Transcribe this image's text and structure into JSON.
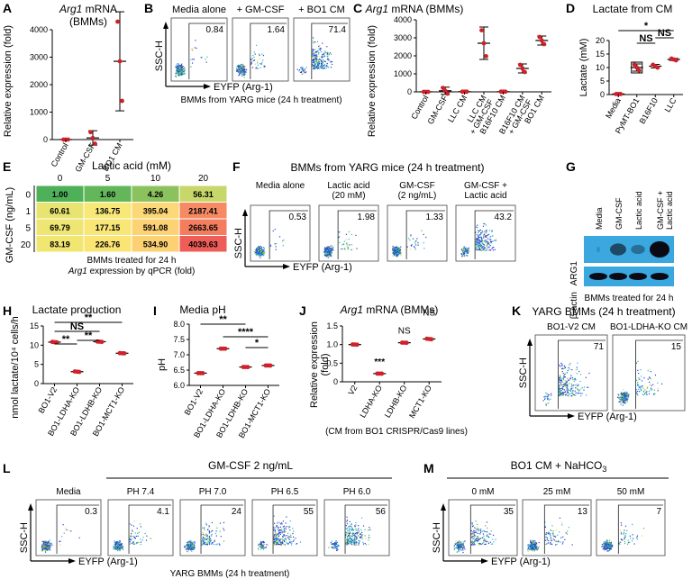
{
  "panels": {
    "A": {
      "label": "A",
      "title_gene": "Arg1",
      "title_rest": " mRNA",
      "subtitle": "(BMMs)",
      "ylabel": "Relative expression (fold)"
    },
    "B": {
      "label": "B",
      "caption": "BMMs from YARG mice (24 h treatment)",
      "xlabel": "EYFP (Arg-1)",
      "ylabel": "SSC-H",
      "plots": [
        {
          "title": "Media alone",
          "value": "0.84",
          "level": 0.06
        },
        {
          "title": "+ GM-CSF",
          "value": "1.64",
          "level": 0.12
        },
        {
          "title": "+ BO1 CM",
          "value": "71.4",
          "level": 0.9
        }
      ]
    },
    "C": {
      "label": "C",
      "title_gene": "Arg1",
      "title_rest": " mRNA (BMMs)",
      "ylabel": "Relative expression (fold)"
    },
    "D": {
      "label": "D",
      "title": "Lactate from CM",
      "ylabel": "Lactate (mM)",
      "annotations": [
        {
          "text": "*",
          "from": 0,
          "to": 3
        },
        {
          "text": "NS",
          "from": 1,
          "to": 2
        },
        {
          "text": "NS",
          "from": 2,
          "to": 3
        }
      ]
    },
    "E": {
      "label": "E",
      "title": "Lactic acid (mM)",
      "ylabel": "GM-CSF (ng/mL)",
      "caption1": "BMMs treated for 24 h",
      "caption_gene": "Arg1",
      "caption2_rest": " expression by qPCR (fold)",
      "cols": [
        "0",
        "5",
        "10",
        "20"
      ],
      "rows": [
        "0",
        "1",
        "5",
        "20"
      ],
      "values": [
        [
          "1.00",
          "1.60",
          "4.26",
          "56.31"
        ],
        [
          "60.61",
          "136.75",
          "395.04",
          "2187.41"
        ],
        [
          "69.79",
          "177.15",
          "591.08",
          "2663.65"
        ],
        [
          "83.19",
          "226.76",
          "534.90",
          "4039.63"
        ]
      ],
      "colors": [
        [
          "#4fb05a",
          "#63b75a",
          "#8cc25e",
          "#c8d769"
        ],
        [
          "#e7e471",
          "#f7e877",
          "#fcd876",
          "#f58a63"
        ],
        [
          "#eee572",
          "#f8e676",
          "#fdd275",
          "#f47d60"
        ],
        [
          "#f2e673",
          "#fae474",
          "#fcd174",
          "#ef5d59"
        ]
      ]
    },
    "F": {
      "label": "F",
      "title": "BMMs from YARG mice (24 h treatment)",
      "xlabel": "EYFP (Arg-1)",
      "ylabel": "SSC-H",
      "plots": [
        {
          "title": "Media alone",
          "value": "0.53",
          "level": 0.05
        },
        {
          "title": "Lactic acid\n(20 mM)",
          "value": "1.98",
          "level": 0.12
        },
        {
          "title": "GM-CSF\n(2 ng/mL)",
          "value": "1.33",
          "level": 0.1
        },
        {
          "title": "GM-CSF +\nLactic acid",
          "value": "43.2",
          "level": 0.75
        }
      ]
    },
    "G": {
      "label": "G",
      "lanes": [
        "Media",
        "GM-CSF",
        "Lactic acid",
        "GM-CSF +\nLactic acid"
      ],
      "bands": [
        {
          "name": "ARG1"
        },
        {
          "name": "β-actin"
        }
      ],
      "arg1_intensity": [
        0.05,
        0.6,
        0.35,
        1.0
      ],
      "caption": "BMMs treated for 24 h"
    },
    "H": {
      "label": "H",
      "title": "Lactate production",
      "ylabel": "nmol lactate/10⁴ cells/h",
      "annotations": [
        {
          "text": "**",
          "from": 0,
          "to": 3
        },
        {
          "text": "NS",
          "from": 0,
          "to": 2
        },
        {
          "text": "**",
          "from": 0,
          "to": 1
        },
        {
          "text": "**",
          "from": 1,
          "to": 2
        }
      ]
    },
    "I": {
      "label": "I",
      "title": "Media pH",
      "ylabel": "pH",
      "annotations": [
        {
          "text": "**",
          "from": 0,
          "to": 2
        },
        {
          "text": "****",
          "from": 1,
          "to": 3
        },
        {
          "text": "*",
          "from": 2,
          "to": 3
        }
      ]
    },
    "J": {
      "label": "J",
      "title_gene": "Arg1",
      "title_rest": " mRNA (BMMs)",
      "ylabel": "Relative expression\n(fold)",
      "caption": "(CM from BO1 CRISPR/Cas9 lines)",
      "marks": [
        "",
        "***",
        "NS",
        "NS"
      ]
    },
    "K": {
      "label": "K",
      "title": "YARG BMMs (24 h treatment)",
      "xlabel": "EYFP (Arg-1)",
      "ylabel": "SSC-H",
      "plots": [
        {
          "title": "BO1-V2 CM",
          "value": "71",
          "level": 0.9
        },
        {
          "title": "BO1-LDHA-KO CM",
          "value": "15",
          "level": 0.3
        }
      ]
    },
    "L": {
      "label": "L",
      "title": "GM-CSF 2 ng/mL",
      "xlabel": "EYFP (Arg-1)",
      "ylabel": "SSC-H",
      "caption": "YARG BMMs (24 h treatment)",
      "plots": [
        {
          "title": "Media",
          "value": "0.3",
          "level": 0.04
        },
        {
          "title": "PH 7.4",
          "value": "4.1",
          "level": 0.2
        },
        {
          "title": "PH 7.0",
          "value": "24",
          "level": 0.45
        },
        {
          "title": "PH 6.5",
          "value": "55",
          "level": 0.75
        },
        {
          "title": "PH 6.0",
          "value": "56",
          "level": 0.78
        }
      ]
    },
    "M": {
      "label": "M",
      "title": "BO1 CM + NaHCO",
      "title_sub": "3",
      "xlabel": "EYFP (Arg-1)",
      "ylabel": "SSC-H",
      "plots": [
        {
          "title": "0 mM",
          "value": "35",
          "level": 0.55
        },
        {
          "title": "25 mM",
          "value": "13",
          "level": 0.25
        },
        {
          "title": "50 mM",
          "value": "7",
          "level": 0.15
        }
      ]
    }
  },
  "colors": {
    "point": "#d0202a",
    "accent": "#d0202a",
    "boxfill": "#ffffff"
  },
  "chart_data": [
    {
      "panel": "A",
      "type": "scatter",
      "categories": [
        "Control",
        "GM-CSF",
        "BO1 CM"
      ],
      "values": [
        1,
        60,
        2850
      ],
      "ylim": [
        0,
        4000
      ],
      "yticks": [
        0,
        1000,
        2000,
        3000,
        4000
      ]
    },
    {
      "panel": "C",
      "type": "scatter",
      "categories": [
        "Control",
        "GM-CSF",
        "LLC CM",
        "LLC CM\n+ GM-CSF",
        "B16F10 CM",
        "B16F10 CM\n+ GM-CSF",
        "BO1 CM"
      ],
      "values": [
        1,
        60,
        10,
        2700,
        10,
        1300,
        2850
      ],
      "ylim": [
        0,
        4000
      ],
      "yticks": [
        0,
        1000,
        2000,
        3000,
        4000
      ]
    },
    {
      "panel": "D",
      "type": "box",
      "categories": [
        "Media",
        "PyMT-BO1",
        "B16F10",
        "LLC"
      ],
      "values": [
        0.2,
        10,
        10.5,
        13
      ],
      "ylim": [
        0,
        20
      ],
      "yticks": [
        0,
        5,
        10,
        15,
        20
      ]
    },
    {
      "panel": "H",
      "type": "scatter",
      "categories": [
        "BO1-V2",
        "BO1-LDHA-KO",
        "BO1-LDHB-KO",
        "BO1-MCT1-KO"
      ],
      "values": [
        10.8,
        3.1,
        10.9,
        7.9
      ],
      "ylim": [
        0,
        15
      ],
      "yticks": [
        0,
        5,
        10,
        15
      ]
    },
    {
      "panel": "I",
      "type": "scatter",
      "categories": [
        "BO1-V2",
        "BO1-LDHA-KO",
        "BO1-LDHB-KO",
        "BO1-MCT1-KO"
      ],
      "values": [
        6.4,
        7.2,
        6.6,
        6.65
      ],
      "ylim": [
        6.0,
        8.0
      ],
      "yticks": [
        6.0,
        6.5,
        7.0,
        7.5,
        8.0
      ]
    },
    {
      "panel": "J",
      "type": "scatter",
      "categories": [
        "V2",
        "LDHA-KO",
        "LDHB-KO",
        "MCT1-KO"
      ],
      "values": [
        1.0,
        0.22,
        1.05,
        1.15
      ],
      "ylim": [
        0,
        1.5
      ],
      "yticks": [
        0,
        0.5,
        1.0,
        1.5
      ]
    }
  ]
}
